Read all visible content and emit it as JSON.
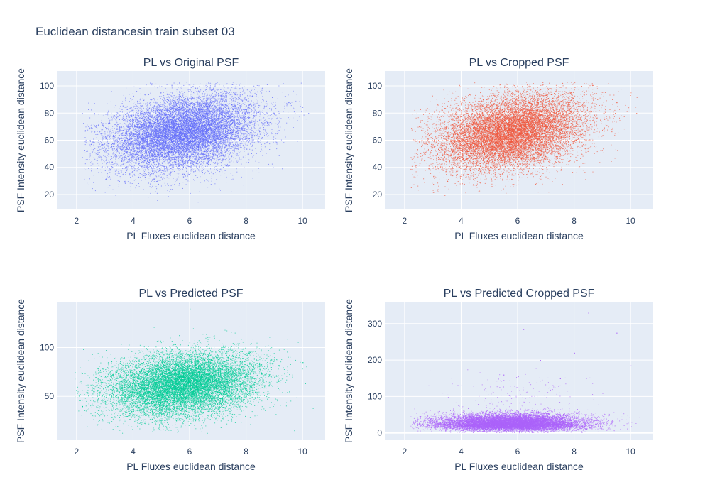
{
  "figure": {
    "title": "Euclidean distancesin train subset 03"
  },
  "chart_data": [
    {
      "type": "scatter",
      "title": "PL vs Original PSF",
      "xlabel": "PL Fluxes euclidean distance",
      "ylabel": "PSF Intensity euclidean distance",
      "xlim": [
        1.3,
        10.8
      ],
      "ylim": [
        9,
        111
      ],
      "xticks": [
        2,
        4,
        6,
        8,
        10
      ],
      "yticks": [
        20,
        40,
        60,
        80,
        100
      ],
      "color": "#636efa",
      "distribution": {
        "n": 14000,
        "x_mean": 5.75,
        "x_sd": 1.3,
        "y_mean": 66,
        "y_sd": 14,
        "corr": 0.3,
        "x_range": [
          2.2,
          10.3
        ],
        "y_range": [
          14,
          103
        ]
      },
      "points": [
        [
          3.0,
          22
        ],
        [
          3.5,
          30
        ],
        [
          4.0,
          48
        ],
        [
          4.5,
          62
        ],
        [
          5.0,
          70
        ],
        [
          5.5,
          74
        ],
        [
          6.0,
          78
        ],
        [
          6.5,
          72
        ],
        [
          7.0,
          70
        ],
        [
          7.5,
          66
        ],
        [
          8.0,
          62
        ],
        [
          8.5,
          60
        ],
        [
          9.5,
          88
        ],
        [
          10.2,
          80
        ]
      ]
    },
    {
      "type": "scatter",
      "title": "PL vs Cropped PSF",
      "xlabel": "PL Fluxes euclidean distance",
      "ylabel": "PSF Intensity euclidean distance",
      "xlim": [
        1.3,
        10.8
      ],
      "ylim": [
        9,
        111
      ],
      "xticks": [
        2,
        4,
        6,
        8,
        10
      ],
      "yticks": [
        20,
        40,
        60,
        80,
        100
      ],
      "color": "#EF553B",
      "distribution": {
        "n": 14000,
        "x_mean": 5.75,
        "x_sd": 1.3,
        "y_mean": 66,
        "y_sd": 14,
        "corr": 0.3,
        "x_range": [
          2.2,
          10.3
        ],
        "y_range": [
          14,
          103
        ]
      },
      "points": [
        [
          3.0,
          22
        ],
        [
          3.5,
          30
        ],
        [
          4.0,
          48
        ],
        [
          4.5,
          62
        ],
        [
          5.0,
          70
        ],
        [
          5.5,
          74
        ],
        [
          6.0,
          78
        ],
        [
          6.5,
          72
        ],
        [
          7.0,
          70
        ],
        [
          7.5,
          66
        ],
        [
          8.0,
          62
        ],
        [
          8.5,
          60
        ],
        [
          9.5,
          88
        ],
        [
          10.2,
          80
        ]
      ]
    },
    {
      "type": "scatter",
      "title": "PL vs Predicted PSF",
      "xlabel": "PL Fluxes euclidean distance",
      "ylabel": "PSF Intensity euclidean distance",
      "xlim": [
        1.3,
        10.8
      ],
      "ylim": [
        5,
        147
      ],
      "xticks": [
        2,
        4,
        6,
        8,
        10
      ],
      "yticks": [
        50,
        100
      ],
      "color": "#00cc96",
      "distribution": {
        "n": 14000,
        "x_mean": 5.75,
        "x_sd": 1.3,
        "y_mean": 62,
        "y_sd": 16,
        "corr": 0.2,
        "x_range": [
          1.9,
          10.4
        ],
        "y_range": [
          12,
          140
        ]
      },
      "points": [
        [
          2.2,
          40
        ],
        [
          3.0,
          45
        ],
        [
          4.0,
          55
        ],
        [
          5.0,
          60
        ],
        [
          6.0,
          65
        ],
        [
          7.0,
          62
        ],
        [
          8.0,
          58
        ],
        [
          9.0,
          70
        ],
        [
          10.0,
          85
        ],
        [
          6.0,
          140
        ]
      ]
    },
    {
      "type": "scatter",
      "title": "PL vs Predicted Cropped PSF",
      "xlabel": "PL Fluxes euclidean distance",
      "ylabel": "PSF Intensity euclidean distance",
      "xlim": [
        1.3,
        10.8
      ],
      "ylim": [
        -20,
        360
      ],
      "xticks": [
        2,
        4,
        6,
        8,
        10
      ],
      "yticks": [
        0,
        100,
        200,
        300
      ],
      "color": "#ab63fa",
      "distribution": {
        "n": 14000,
        "x_mean": 5.75,
        "x_sd": 1.3,
        "y_mean": 25,
        "y_sd": 14,
        "skew": "right",
        "x_range": [
          2.2,
          10.3
        ],
        "y_range": [
          1,
          330
        ]
      },
      "points": [
        [
          8.5,
          330
        ],
        [
          9.5,
          275
        ],
        [
          6.2,
          285
        ],
        [
          8.0,
          220
        ],
        [
          6.8,
          200
        ],
        [
          5.5,
          160
        ],
        [
          7.5,
          150
        ],
        [
          10.0,
          185
        ],
        [
          4.8,
          120
        ],
        [
          9.0,
          110
        ]
      ]
    }
  ]
}
